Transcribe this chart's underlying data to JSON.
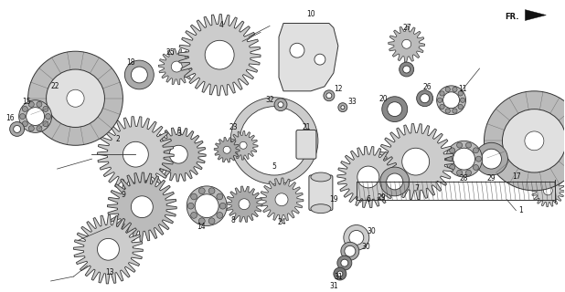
{
  "bg_color": "#ffffff",
  "fig_width": 6.18,
  "fig_height": 3.2,
  "dpi": 100,
  "edge_color": "#333333",
  "fill_light": "#e8e8e8",
  "fill_dark": "#aaaaaa",
  "fill_mid": "#cccccc"
}
